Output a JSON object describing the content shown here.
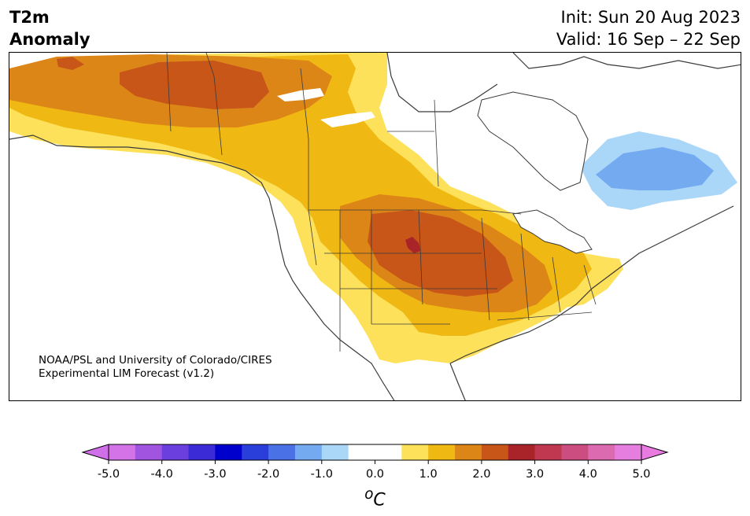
{
  "header": {
    "title_line1": "T2m",
    "title_line2": "Anomaly",
    "init": "Init: Sun 20 Aug 2023",
    "valid": "Valid: 16 Sep – 22 Sep"
  },
  "credit": {
    "line1": "NOAA/PSL and University of Colorado/CIRES",
    "line2": "Experimental LIM Forecast (v1.2)"
  },
  "colorbar": {
    "unit_symbol": "o",
    "unit_letter": "C",
    "tick_labels": [
      "-5.0",
      "-4.0",
      "-3.0",
      "-2.0",
      "-1.0",
      "0.0",
      "1.0",
      "2.0",
      "3.0",
      "4.0",
      "5.0"
    ],
    "colors": [
      "#d472e8",
      "#a154df",
      "#6b3ede",
      "#3a2bd6",
      "#0000cd",
      "#2a3ed9",
      "#4a72e6",
      "#73aaf0",
      "#aad6f8",
      "#ffffff",
      "#ffffff",
      "#fde15a",
      "#f0b812",
      "#dd8618",
      "#c85618",
      "#a82428",
      "#c03850",
      "#cc4e80",
      "#dc6ab0",
      "#e67ee0"
    ],
    "under_color": "#d070e8",
    "over_color": "#e87ae0"
  },
  "map": {
    "region": "North America",
    "max_anomaly_region": "Central Plains / Midwest",
    "cold_anomaly_region": "Northern Quebec / Labrador"
  }
}
